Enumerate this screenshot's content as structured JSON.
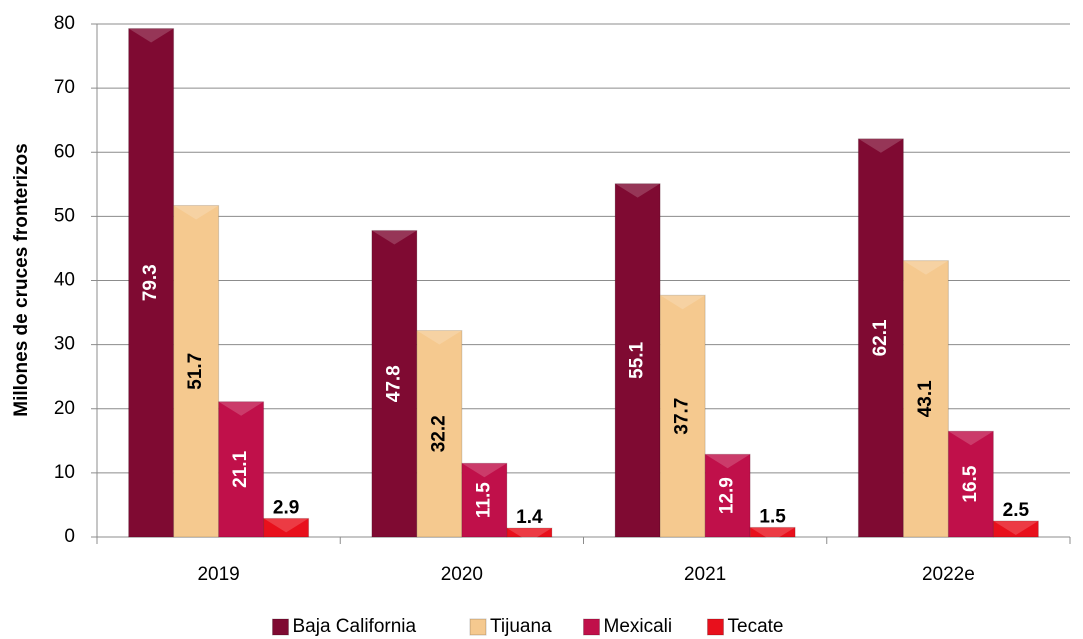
{
  "chart_data": {
    "type": "bar",
    "y_label": "Millones de cruces fronterizos",
    "categories": [
      "2019",
      "2020",
      "2021",
      "2022e"
    ],
    "series": [
      {
        "name": "Baja California",
        "color": "#7f0a32",
        "values": [
          79.3,
          47.8,
          55.1,
          62.1
        ]
      },
      {
        "name": "Tijuana",
        "color": "#f5c98f",
        "values": [
          51.7,
          32.2,
          37.7,
          43.1
        ]
      },
      {
        "name": "Mexicali",
        "color": "#c0104a",
        "values": [
          21.1,
          11.5,
          12.9,
          16.5
        ]
      },
      {
        "name": "Tecate",
        "color": "#e8101c",
        "values": [
          2.9,
          1.4,
          1.5,
          2.5
        ]
      }
    ],
    "ylim": [
      0,
      80
    ],
    "yticks": [
      0,
      10,
      20,
      30,
      40,
      50,
      60,
      70,
      80
    ],
    "grid": true,
    "legend": "bottom"
  }
}
